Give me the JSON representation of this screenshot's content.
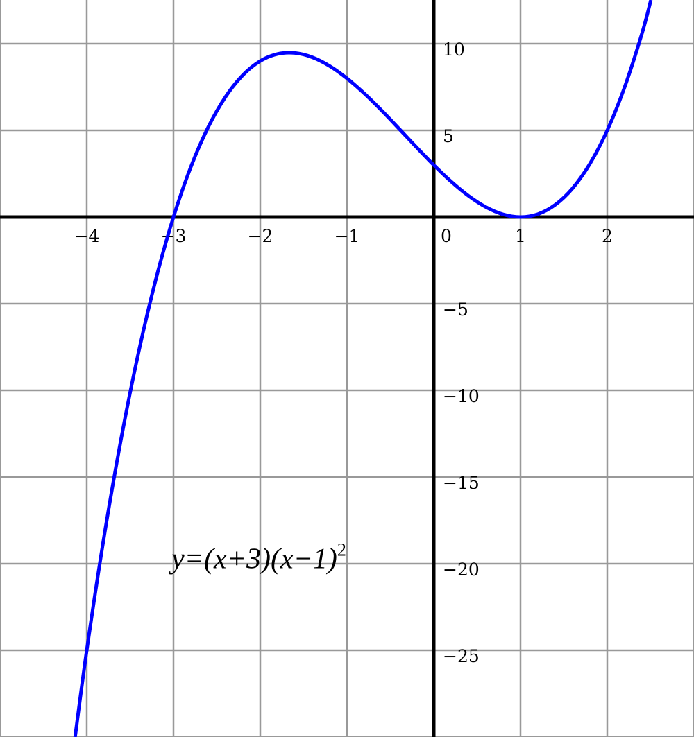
{
  "chart_data": {
    "type": "line",
    "title": "",
    "xlabel": "",
    "ylabel": "",
    "xlim": [
      -5,
      3
    ],
    "ylim": [
      -30,
      12.5
    ],
    "grid": true,
    "x_grid_step": 1,
    "y_grid_step": 5,
    "x_tick_labels": [
      {
        "value": -4,
        "label": "−4"
      },
      {
        "value": -3,
        "label": "−3"
      },
      {
        "value": -2,
        "label": "−2"
      },
      {
        "value": -1,
        "label": "−1"
      },
      {
        "value": 0,
        "label": "0"
      },
      {
        "value": 1,
        "label": "1"
      },
      {
        "value": 2,
        "label": "2"
      }
    ],
    "y_tick_labels": [
      {
        "value": 10,
        "label": "10"
      },
      {
        "value": 5,
        "label": "5"
      },
      {
        "value": -5,
        "label": "−5"
      },
      {
        "value": -10,
        "label": "−10"
      },
      {
        "value": -15,
        "label": "−15"
      },
      {
        "value": -20,
        "label": "−20"
      },
      {
        "value": -25,
        "label": "−25"
      }
    ],
    "annotation": {
      "text": "y=(x+3)(x−1)",
      "exponent": "2",
      "x": -3,
      "y": -19.7
    },
    "colors": {
      "curve": "#0000ff",
      "grid": "#999999",
      "axes": "#000000"
    },
    "series": [
      {
        "x": [
          -4.2,
          -4.0,
          -3.8,
          -3.6,
          -3.4,
          -3.2,
          -3.0,
          -2.8,
          -2.6,
          -2.4,
          -2.2,
          -2.0,
          -1.8,
          -1.6,
          -1.4,
          -1.2,
          -1.0,
          -0.8,
          -0.6,
          -0.4,
          -0.2,
          0,
          0.2,
          0.4,
          0.6,
          0.8,
          1.0,
          1.2,
          1.4,
          1.6,
          1.8,
          2.0,
          2.2,
          2.4,
          2.6
        ],
        "y": [
          -32.448,
          -25,
          -18.432,
          -12.696,
          -7.744,
          -3.528,
          0,
          2.888,
          5.184,
          6.936,
          8.192,
          9,
          9.408,
          9.464,
          9.216,
          8.712,
          8,
          7.128,
          6.144,
          5.096,
          4.032,
          3,
          2.048,
          1.224,
          0.576,
          0.152,
          0,
          0.168,
          0.704,
          1.656,
          3.072,
          5,
          7.488,
          10.584,
          14.336
        ]
      }
    ]
  }
}
